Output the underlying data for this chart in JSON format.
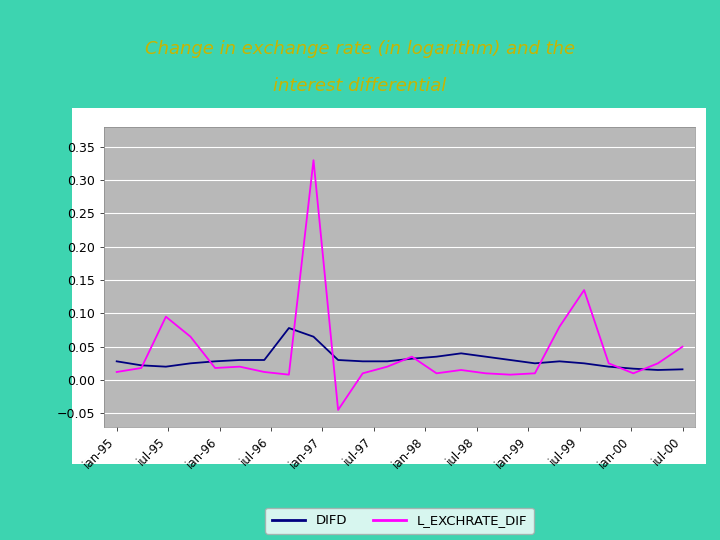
{
  "title_line1": "Change in exchange rate (in logarithm) and the",
  "title_line2": "interest differential",
  "title_color": "#c8b400",
  "bg_color": "#3dd4b0",
  "plot_bg_color": "#b8b8b8",
  "frame_color": "#ffffff",
  "x_labels": [
    "ian-95",
    "iul-95",
    "ian-96",
    "iul-96",
    "ian-97",
    "iul-97",
    "ian-98",
    "iul-98",
    "ian-99",
    "iul-99",
    "ian-00",
    "iul-00"
  ],
  "ylim": [
    -0.07,
    0.38
  ],
  "yticks": [
    -0.05,
    0,
    0.05,
    0.1,
    0.15,
    0.2,
    0.25,
    0.3,
    0.35
  ],
  "difd": [
    0.028,
    0.022,
    0.02,
    0.025,
    0.028,
    0.03,
    0.03,
    0.078,
    0.065,
    0.03,
    0.028,
    0.028,
    0.032,
    0.035,
    0.04,
    0.035,
    0.03,
    0.025,
    0.028,
    0.025,
    0.02,
    0.017,
    0.015,
    0.016
  ],
  "l_exchrate_dif": [
    0.012,
    0.018,
    0.095,
    0.065,
    0.018,
    0.02,
    0.012,
    0.008,
    0.33,
    -0.045,
    0.01,
    0.02,
    0.035,
    0.01,
    0.015,
    0.01,
    0.008,
    0.01,
    0.08,
    0.135,
    0.025,
    0.01,
    0.025,
    0.05
  ],
  "difd_color": "#000080",
  "exchrate_color": "#ff00ff",
  "legend_bg": "#ffffff",
  "n_points": 24,
  "n_labels": 12
}
